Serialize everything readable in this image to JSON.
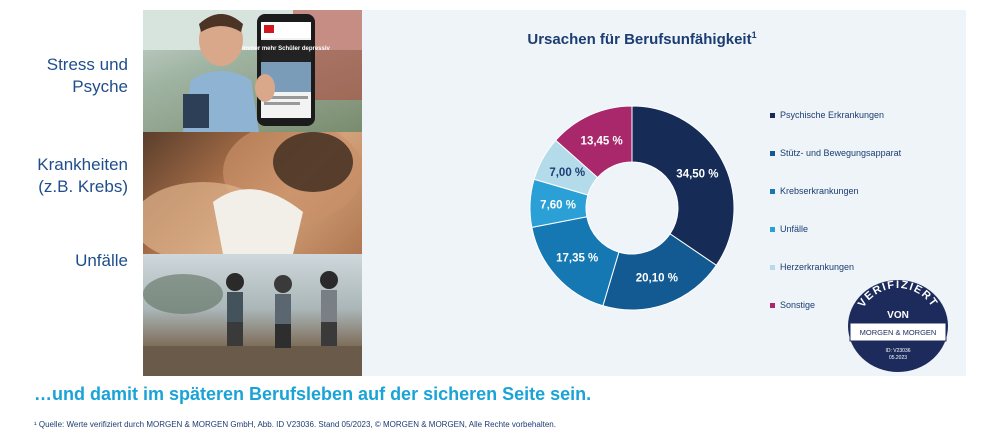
{
  "categories_left": [
    {
      "label": "Stress und\nPsyche"
    },
    {
      "label": "Krankheiten\n(z.B. Krebs)"
    },
    {
      "label": "Unfälle"
    }
  ],
  "photo_text": {
    "headline": "Immer mehr Schüler depressiv"
  },
  "chart_data": {
    "type": "pie",
    "title": "Ursachen für Berufsunfähigkeit",
    "title_footnote_mark": "1",
    "donut": true,
    "legend_position": "right",
    "slices": [
      {
        "name": "Psychische Erkrankungen",
        "value": 34.5,
        "label": "34,50 %",
        "color": "#162c57"
      },
      {
        "name": "Stütz- und Bewegungsapparat",
        "value": 20.1,
        "label": "20,10 %",
        "color": "#135a93"
      },
      {
        "name": "Krebserkrankungen",
        "value": 17.35,
        "label": "17,35 %",
        "color": "#1578b3"
      },
      {
        "name": "Unfälle",
        "value": 7.6,
        "label": "7,60 %",
        "color": "#2aa0d6"
      },
      {
        "name": "Herzerkrankungen",
        "value": 7.0,
        "label": "7,00 %",
        "color": "#b4dbea"
      },
      {
        "name": "Sonstige",
        "value": 13.45,
        "label": "13,45 %",
        "color": "#a8286b"
      }
    ]
  },
  "seal": {
    "arc_text": "VERIFIZIERT",
    "von": "VON",
    "brand": "MORGEN & MORGEN",
    "id_line": "ID: V23036",
    "date_line": "05.2023"
  },
  "slogan": "…und damit im späteren Berufsleben auf der sicheren Seite sein.",
  "footnote": "¹ Quelle: Werte verifiziert durch MORGEN & MORGEN GmbH, Abb. ID V23036. Stand 05/2023, © MORGEN & MORGEN, Alle Rechte vorbehalten.",
  "colors": {
    "title": "#1c3d73",
    "slogan": "#1aa3d6",
    "panel": "#eef4f7"
  }
}
